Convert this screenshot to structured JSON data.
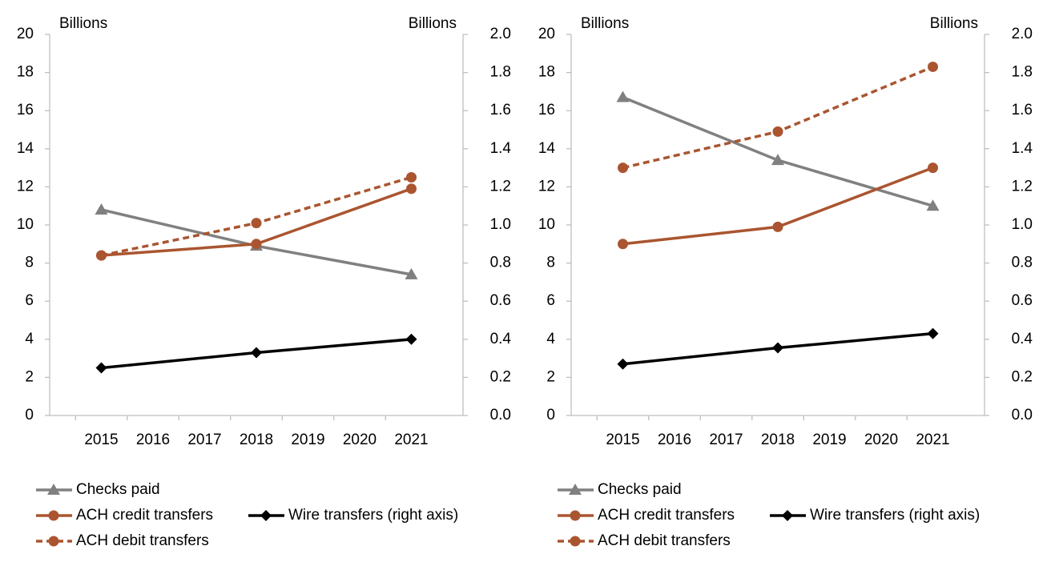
{
  "chart_data": [
    {
      "type": "line",
      "y_label": "Billions",
      "y2_label": "Billions",
      "x": [
        2015,
        2018,
        2021
      ],
      "xlim": [
        2014,
        2022
      ],
      "xticks": [
        2015,
        2016,
        2017,
        2018,
        2019,
        2020,
        2021
      ],
      "ylim": [
        0,
        20
      ],
      "yticks": [
        0,
        2,
        4,
        6,
        8,
        10,
        12,
        14,
        16,
        18,
        20
      ],
      "y2lim": [
        0,
        2
      ],
      "y2ticks": [
        {
          "value": 0,
          "label": "0.0"
        },
        0.2,
        0.4,
        0.6,
        0.8,
        {
          "value": 1,
          "label": "1.0"
        },
        1.2,
        1.4,
        1.6,
        1.8,
        {
          "value": 2,
          "label": "2.0"
        }
      ],
      "series": [
        {
          "name": "Checks paid",
          "color": "#808080",
          "marker": "triangle",
          "dash": false,
          "values": [
            10.8,
            8.9,
            7.4
          ]
        },
        {
          "name": "ACH credit transfers",
          "color": "#aa5530",
          "marker": "circle",
          "dash": false,
          "values": [
            8.4,
            9.0,
            11.9
          ]
        },
        {
          "name": "ACH debit transfers",
          "color": "#aa5530",
          "marker": "circle",
          "dash": true,
          "values": [
            8.4,
            10.1,
            12.5
          ]
        },
        {
          "name": "Wire transfers (right axis)",
          "color": "#000000",
          "marker": "diamond",
          "dash": false,
          "axis": "y2",
          "values": [
            0.25,
            0.33,
            0.4
          ]
        }
      ]
    },
    {
      "type": "line",
      "y_label": "Billions",
      "y2_label": "Billions",
      "x": [
        2015,
        2018,
        2021
      ],
      "xlim": [
        2014,
        2022
      ],
      "xticks": [
        2015,
        2016,
        2017,
        2018,
        2019,
        2020,
        2021
      ],
      "ylim": [
        0,
        20
      ],
      "yticks": [
        0,
        2,
        4,
        6,
        8,
        10,
        12,
        14,
        16,
        18,
        20
      ],
      "y2lim": [
        0,
        2
      ],
      "y2ticks": [
        {
          "value": 0,
          "label": "0.0"
        },
        0.2,
        0.4,
        0.6,
        0.8,
        {
          "value": 1,
          "label": "1.0"
        },
        1.2,
        1.4,
        1.6,
        1.8,
        {
          "value": 2,
          "label": "2.0"
        }
      ],
      "series": [
        {
          "name": "Checks paid",
          "color": "#808080",
          "marker": "triangle",
          "dash": false,
          "values": [
            16.7,
            13.4,
            11.0
          ]
        },
        {
          "name": "ACH credit transfers",
          "color": "#aa5530",
          "marker": "circle",
          "dash": false,
          "values": [
            9.0,
            9.9,
            13.0
          ]
        },
        {
          "name": "ACH debit transfers",
          "color": "#aa5530",
          "marker": "circle",
          "dash": true,
          "values": [
            13.0,
            14.9,
            18.3
          ]
        },
        {
          "name": "Wire transfers (right axis)",
          "color": "#000000",
          "marker": "diamond",
          "dash": false,
          "axis": "y2",
          "values": [
            0.27,
            0.355,
            0.43
          ]
        }
      ]
    }
  ]
}
